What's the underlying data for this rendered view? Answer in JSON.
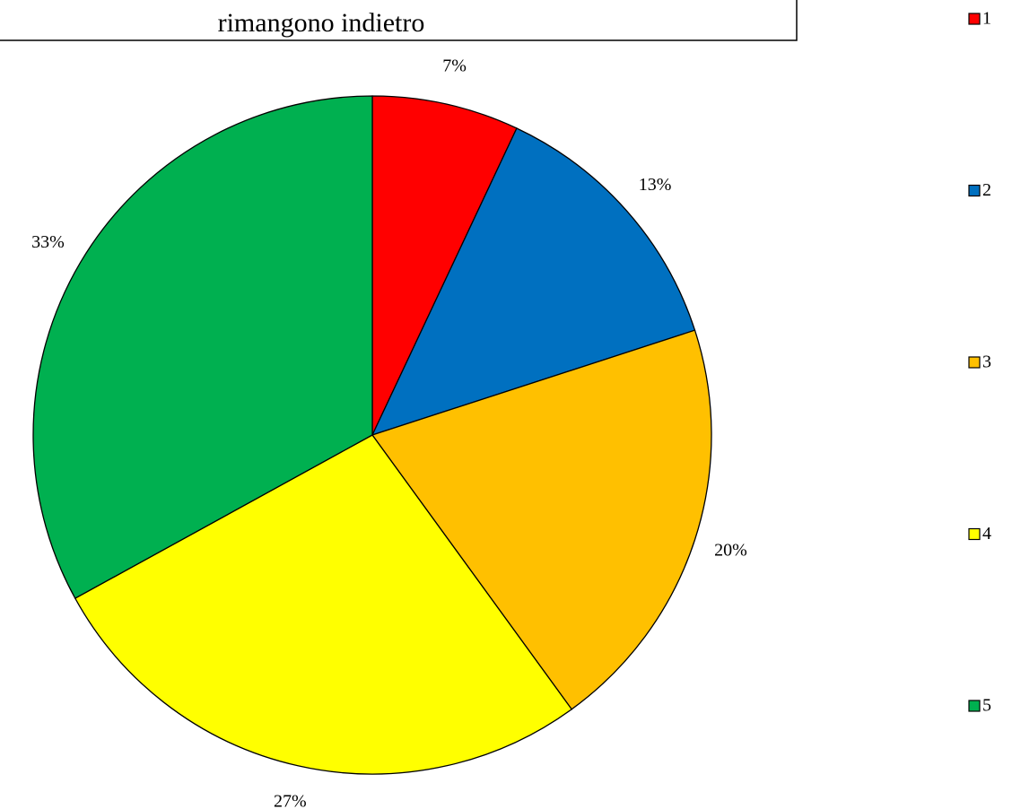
{
  "chart_data": {
    "type": "pie",
    "title": "rimangono indietro",
    "categories": [
      "1",
      "2",
      "3",
      "4",
      "5"
    ],
    "values": [
      7,
      13,
      20,
      27,
      33
    ],
    "value_labels": [
      "7%",
      "13%",
      "20%",
      "27%",
      "33%"
    ],
    "colors": [
      "#ff0000",
      "#0070c0",
      "#ffc000",
      "#ffff00",
      "#00b050"
    ],
    "legend": "right"
  }
}
